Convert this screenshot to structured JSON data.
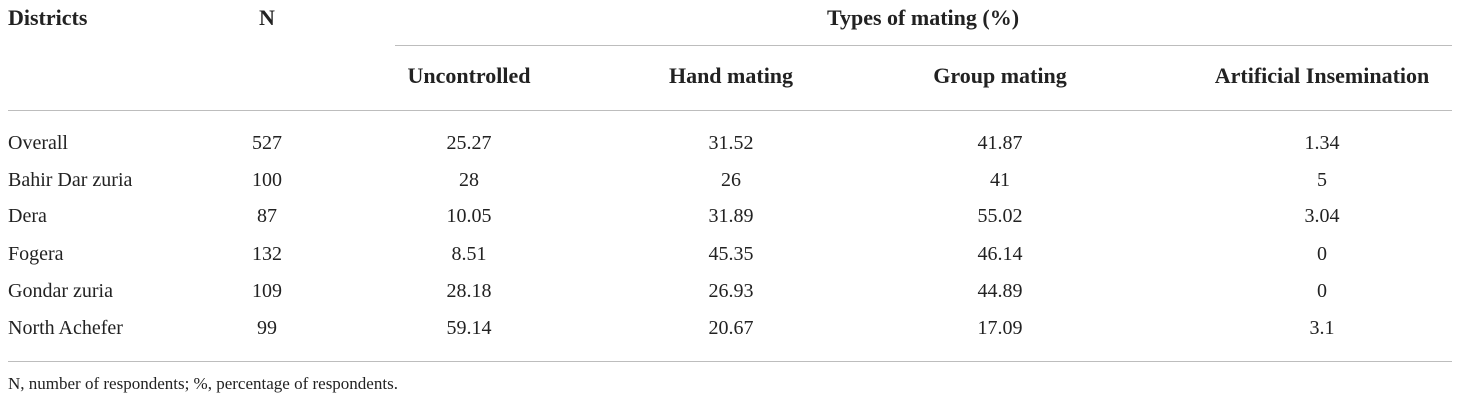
{
  "table": {
    "header": {
      "districts": "Districts",
      "n": "N",
      "group": "Types of mating (%)",
      "columns": [
        "Uncontrolled",
        "Hand mating",
        "Group mating",
        "Artificial Insemination"
      ]
    },
    "rows": [
      [
        "Overall",
        527,
        25.27,
        31.52,
        41.87,
        1.34
      ],
      [
        "Bahir Dar zuria",
        100,
        28,
        26,
        41,
        5
      ],
      [
        "Dera",
        87,
        10.05,
        31.89,
        55.02,
        3.04
      ],
      [
        "Fogera",
        132,
        8.51,
        45.35,
        46.14,
        0
      ],
      [
        "Gondar zuria",
        109,
        28.18,
        26.93,
        44.89,
        0
      ],
      [
        "North Achefer",
        99,
        59.14,
        20.67,
        17.09,
        3.1
      ]
    ],
    "footnote": "N, number of respondents; %, percentage of respondents."
  }
}
